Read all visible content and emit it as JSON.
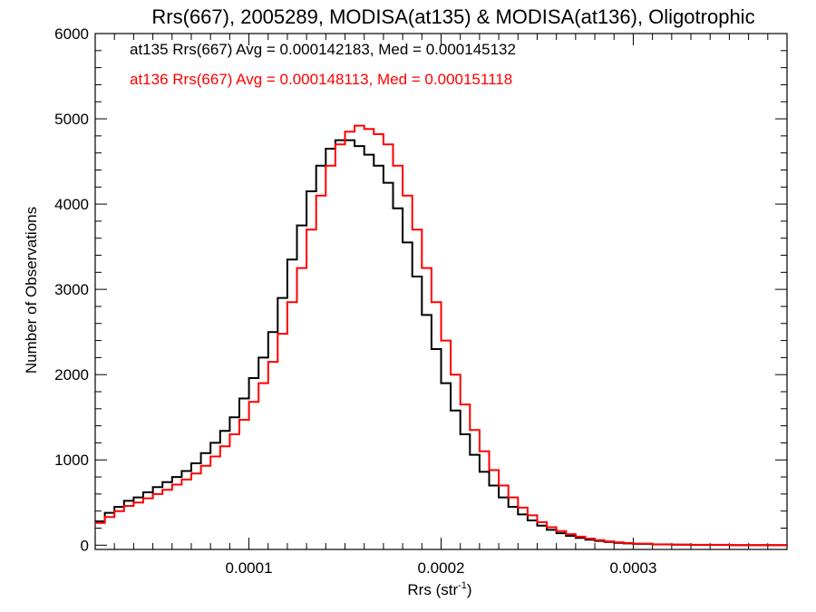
{
  "chart_data": {
    "type": "line",
    "title": "Rrs(667), 2005289, MODISA(at135) & MODISA(at136), Oligotrophic",
    "xlabel_base": "Rrs (str",
    "xlabel_sup": "-1",
    "xlabel_end": ")",
    "ylabel": "Number of Observations",
    "xlim": [
      2e-05,
      0.00038
    ],
    "ylim": [
      -50,
      6000
    ],
    "x_ticks": [
      0.0001,
      0.0002,
      0.0003
    ],
    "x_tick_labels": [
      "0.0001",
      "0.0002",
      "0.0003"
    ],
    "y_ticks": [
      0,
      1000,
      2000,
      3000,
      4000,
      5000,
      6000
    ],
    "y_tick_labels": [
      "0",
      "1000",
      "2000",
      "3000",
      "4000",
      "5000",
      "6000"
    ],
    "grid": false,
    "legend_position": "top-left",
    "series": [
      {
        "name": "at135",
        "color": "#000000",
        "legend": "at135 Rrs(667) Avg = 0.000142183, Med = 0.000145132",
        "points": [
          [
            2e-05,
            280
          ],
          [
            2.5e-05,
            380
          ],
          [
            3e-05,
            450
          ],
          [
            3.5e-05,
            520
          ],
          [
            4e-05,
            560
          ],
          [
            4.5e-05,
            620
          ],
          [
            5e-05,
            680
          ],
          [
            5.5e-05,
            740
          ],
          [
            6e-05,
            800
          ],
          [
            6.5e-05,
            870
          ],
          [
            7e-05,
            960
          ],
          [
            7.5e-05,
            1080
          ],
          [
            8e-05,
            1200
          ],
          [
            8.5e-05,
            1340
          ],
          [
            9e-05,
            1500
          ],
          [
            9.5e-05,
            1720
          ],
          [
            0.0001,
            1960
          ],
          [
            0.000105,
            2200
          ],
          [
            0.00011,
            2500
          ],
          [
            0.000115,
            2900
          ],
          [
            0.00012,
            3350
          ],
          [
            0.000125,
            3750
          ],
          [
            0.00013,
            4150
          ],
          [
            0.000135,
            4450
          ],
          [
            0.00014,
            4650
          ],
          [
            0.000145,
            4750
          ],
          [
            0.00015,
            4750
          ],
          [
            0.000155,
            4680
          ],
          [
            0.00016,
            4580
          ],
          [
            0.000165,
            4450
          ],
          [
            0.00017,
            4250
          ],
          [
            0.000175,
            3950
          ],
          [
            0.00018,
            3550
          ],
          [
            0.000185,
            3150
          ],
          [
            0.00019,
            2700
          ],
          [
            0.000195,
            2300
          ],
          [
            0.0002,
            1900
          ],
          [
            0.000205,
            1580
          ],
          [
            0.00021,
            1300
          ],
          [
            0.000215,
            1060
          ],
          [
            0.00022,
            860
          ],
          [
            0.000225,
            700
          ],
          [
            0.00023,
            560
          ],
          [
            0.000235,
            450
          ],
          [
            0.00024,
            360
          ],
          [
            0.000245,
            290
          ],
          [
            0.00025,
            230
          ],
          [
            0.000255,
            180
          ],
          [
            0.00026,
            140
          ],
          [
            0.000265,
            110
          ],
          [
            0.00027,
            85
          ],
          [
            0.000275,
            65
          ],
          [
            0.00028,
            50
          ],
          [
            0.000285,
            38
          ],
          [
            0.00029,
            28
          ],
          [
            0.000295,
            20
          ],
          [
            0.0003,
            15
          ],
          [
            0.00031,
            8
          ],
          [
            0.00032,
            5
          ],
          [
            0.00033,
            3
          ],
          [
            0.00035,
            1
          ],
          [
            0.00038,
            0
          ]
        ]
      },
      {
        "name": "at136",
        "color": "#ff0000",
        "legend": "at136 Rrs(667) Avg = 0.000148113, Med = 0.000151118",
        "points": [
          [
            2e-05,
            260
          ],
          [
            2.5e-05,
            330
          ],
          [
            3e-05,
            400
          ],
          [
            3.5e-05,
            460
          ],
          [
            4e-05,
            500
          ],
          [
            4.5e-05,
            550
          ],
          [
            5e-05,
            600
          ],
          [
            5.5e-05,
            650
          ],
          [
            6e-05,
            710
          ],
          [
            6.5e-05,
            770
          ],
          [
            7e-05,
            840
          ],
          [
            7.5e-05,
            930
          ],
          [
            8e-05,
            1040
          ],
          [
            8.5e-05,
            1160
          ],
          [
            9e-05,
            1300
          ],
          [
            9.5e-05,
            1470
          ],
          [
            0.0001,
            1680
          ],
          [
            0.000105,
            1900
          ],
          [
            0.00011,
            2150
          ],
          [
            0.000115,
            2480
          ],
          [
            0.00012,
            2850
          ],
          [
            0.000125,
            3250
          ],
          [
            0.00013,
            3700
          ],
          [
            0.000135,
            4100
          ],
          [
            0.00014,
            4450
          ],
          [
            0.000145,
            4700
          ],
          [
            0.00015,
            4850
          ],
          [
            0.000155,
            4920
          ],
          [
            0.00016,
            4880
          ],
          [
            0.000165,
            4820
          ],
          [
            0.00017,
            4700
          ],
          [
            0.000175,
            4450
          ],
          [
            0.00018,
            4100
          ],
          [
            0.000185,
            3700
          ],
          [
            0.00019,
            3250
          ],
          [
            0.000195,
            2850
          ],
          [
            0.0002,
            2400
          ],
          [
            0.000205,
            2000
          ],
          [
            0.00021,
            1650
          ],
          [
            0.000215,
            1350
          ],
          [
            0.00022,
            1100
          ],
          [
            0.000225,
            880
          ],
          [
            0.00023,
            700
          ],
          [
            0.000235,
            560
          ],
          [
            0.00024,
            440
          ],
          [
            0.000245,
            350
          ],
          [
            0.00025,
            270
          ],
          [
            0.000255,
            210
          ],
          [
            0.00026,
            165
          ],
          [
            0.000265,
            130
          ],
          [
            0.00027,
            100
          ],
          [
            0.000275,
            78
          ],
          [
            0.00028,
            60
          ],
          [
            0.000285,
            45
          ],
          [
            0.00029,
            34
          ],
          [
            0.000295,
            25
          ],
          [
            0.0003,
            18
          ],
          [
            0.00031,
            10
          ],
          [
            0.00032,
            6
          ],
          [
            0.00033,
            4
          ],
          [
            0.00035,
            1
          ],
          [
            0.00038,
            0
          ]
        ]
      }
    ]
  }
}
